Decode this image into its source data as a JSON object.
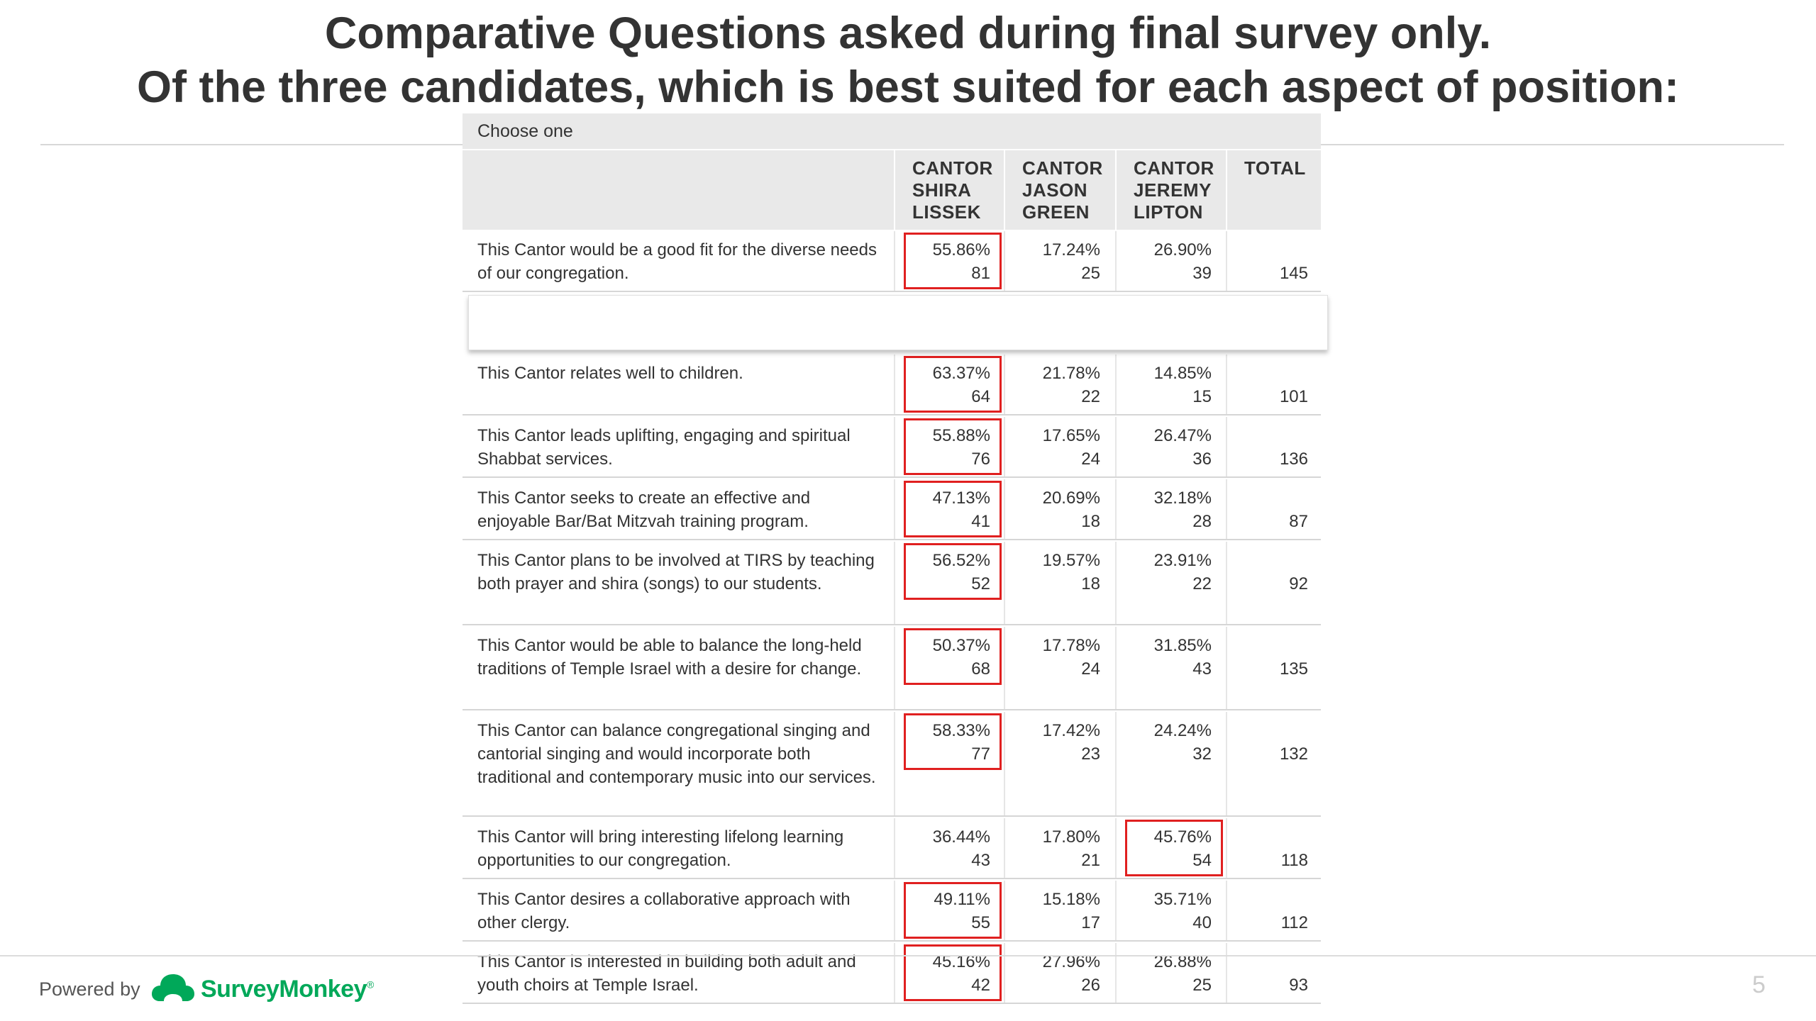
{
  "slide": {
    "title_line1": "Comparative Questions asked during final survey only.",
    "title_line2": "Of the three candidates, which is best suited for each aspect of position:",
    "page_number": "5"
  },
  "footer": {
    "powered_by": "Powered by",
    "brand": "SurveyMonkey",
    "brand_mark": "®",
    "logo_icon": "surveymonkey-logo-icon",
    "brand_color": "#00a859"
  },
  "table": {
    "choose_label": "Choose one",
    "columns": [
      "CANTOR SHIRA LISSEK",
      "CANTOR JASON GREEN",
      "CANTOR JEREMY LIPTON",
      "TOTAL"
    ],
    "column_lines": [
      [
        "CANTOR",
        "SHIRA",
        "LISSEK"
      ],
      [
        "CANTOR",
        "JASON",
        "GREEN"
      ],
      [
        "CANTOR",
        "JEREMY",
        "LIPTON"
      ],
      [
        "TOTAL"
      ]
    ],
    "highlight_color": "#e02020",
    "rows": [
      {
        "question": "This Cantor would be a good fit for the diverse needs of our congregation.",
        "cells": [
          {
            "pct": "55.86%",
            "n": "81"
          },
          {
            "pct": "17.24%",
            "n": "25"
          },
          {
            "pct": "26.90%",
            "n": "39"
          }
        ],
        "total": "145",
        "highlight": 0
      },
      {
        "question": "This Cantor relates well to children.",
        "cells": [
          {
            "pct": "63.37%",
            "n": "64"
          },
          {
            "pct": "21.78%",
            "n": "22"
          },
          {
            "pct": "14.85%",
            "n": "15"
          }
        ],
        "total": "101",
        "highlight": 0
      },
      {
        "question": "This Cantor leads uplifting, engaging and spiritual Shabbat services.",
        "cells": [
          {
            "pct": "55.88%",
            "n": "76"
          },
          {
            "pct": "17.65%",
            "n": "24"
          },
          {
            "pct": "26.47%",
            "n": "36"
          }
        ],
        "total": "136",
        "highlight": 0
      },
      {
        "question": "This Cantor seeks to create an effective and enjoyable Bar/Bat Mitzvah training program.",
        "cells": [
          {
            "pct": "47.13%",
            "n": "41"
          },
          {
            "pct": "20.69%",
            "n": "18"
          },
          {
            "pct": "32.18%",
            "n": "28"
          }
        ],
        "total": "87",
        "highlight": 0
      },
      {
        "question": "This Cantor plans to be involved at TIRS by teaching both prayer and shira (songs) to our students.",
        "cells": [
          {
            "pct": "56.52%",
            "n": "52"
          },
          {
            "pct": "19.57%",
            "n": "18"
          },
          {
            "pct": "23.91%",
            "n": "22"
          }
        ],
        "total": "92",
        "highlight": 0
      },
      {
        "question": "This Cantor would be able to balance the long-held traditions of Temple Israel with a desire for change.",
        "cells": [
          {
            "pct": "50.37%",
            "n": "68"
          },
          {
            "pct": "17.78%",
            "n": "24"
          },
          {
            "pct": "31.85%",
            "n": "43"
          }
        ],
        "total": "135",
        "highlight": 0
      },
      {
        "question": "This Cantor can balance congregational singing and cantorial singing and would incorporate both traditional and contemporary music into our services.",
        "cells": [
          {
            "pct": "58.33%",
            "n": "77"
          },
          {
            "pct": "17.42%",
            "n": "23"
          },
          {
            "pct": "24.24%",
            "n": "32"
          }
        ],
        "total": "132",
        "highlight": 0
      },
      {
        "question": "This Cantor will bring interesting lifelong learning opportunities to our congregation.",
        "cells": [
          {
            "pct": "36.44%",
            "n": "43"
          },
          {
            "pct": "17.80%",
            "n": "21"
          },
          {
            "pct": "45.76%",
            "n": "54"
          }
        ],
        "total": "118",
        "highlight": 2
      },
      {
        "question": "This Cantor desires a collaborative approach with other clergy.",
        "cells": [
          {
            "pct": "49.11%",
            "n": "55"
          },
          {
            "pct": "15.18%",
            "n": "17"
          },
          {
            "pct": "35.71%",
            "n": "40"
          }
        ],
        "total": "112",
        "highlight": 0
      },
      {
        "question": "This Cantor is interested in building both adult and youth choirs at Temple Israel.",
        "cells": [
          {
            "pct": "45.16%",
            "n": "42"
          },
          {
            "pct": "27.96%",
            "n": "26"
          },
          {
            "pct": "26.88%",
            "n": "25"
          }
        ],
        "total": "93",
        "highlight": 0
      }
    ]
  }
}
